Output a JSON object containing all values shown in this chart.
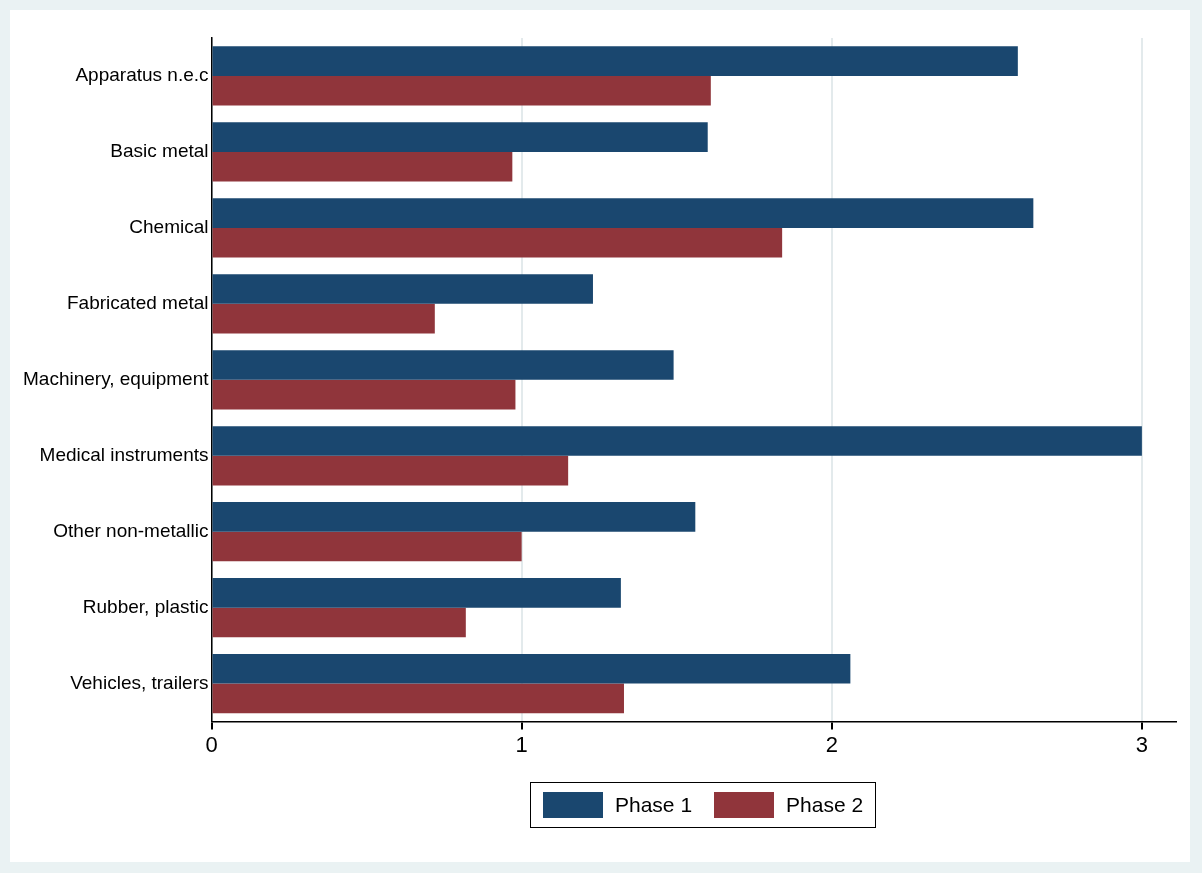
{
  "chart_data": {
    "type": "bar",
    "orientation": "horizontal",
    "categories": [
      "Apparatus n.e.c",
      "Basic metal",
      "Chemical",
      "Fabricated metal",
      "Machinery, equipment",
      "Medical instruments",
      "Other non-metallic",
      "Rubber, plastic",
      "Vehicles, trailers"
    ],
    "series": [
      {
        "name": "Phase 1",
        "color": "#1a476f",
        "values": [
          2.6,
          1.6,
          2.65,
          1.23,
          1.49,
          3.0,
          1.56,
          1.32,
          2.06
        ]
      },
      {
        "name": "Phase 2",
        "color": "#90353b",
        "values": [
          1.61,
          0.97,
          1.84,
          0.72,
          0.98,
          1.15,
          1.0,
          0.82,
          1.33
        ]
      }
    ],
    "xlim": [
      0,
      3.11
    ],
    "xticks": [
      0,
      1,
      2,
      3
    ],
    "grid": "x",
    "legend": "bottom"
  }
}
